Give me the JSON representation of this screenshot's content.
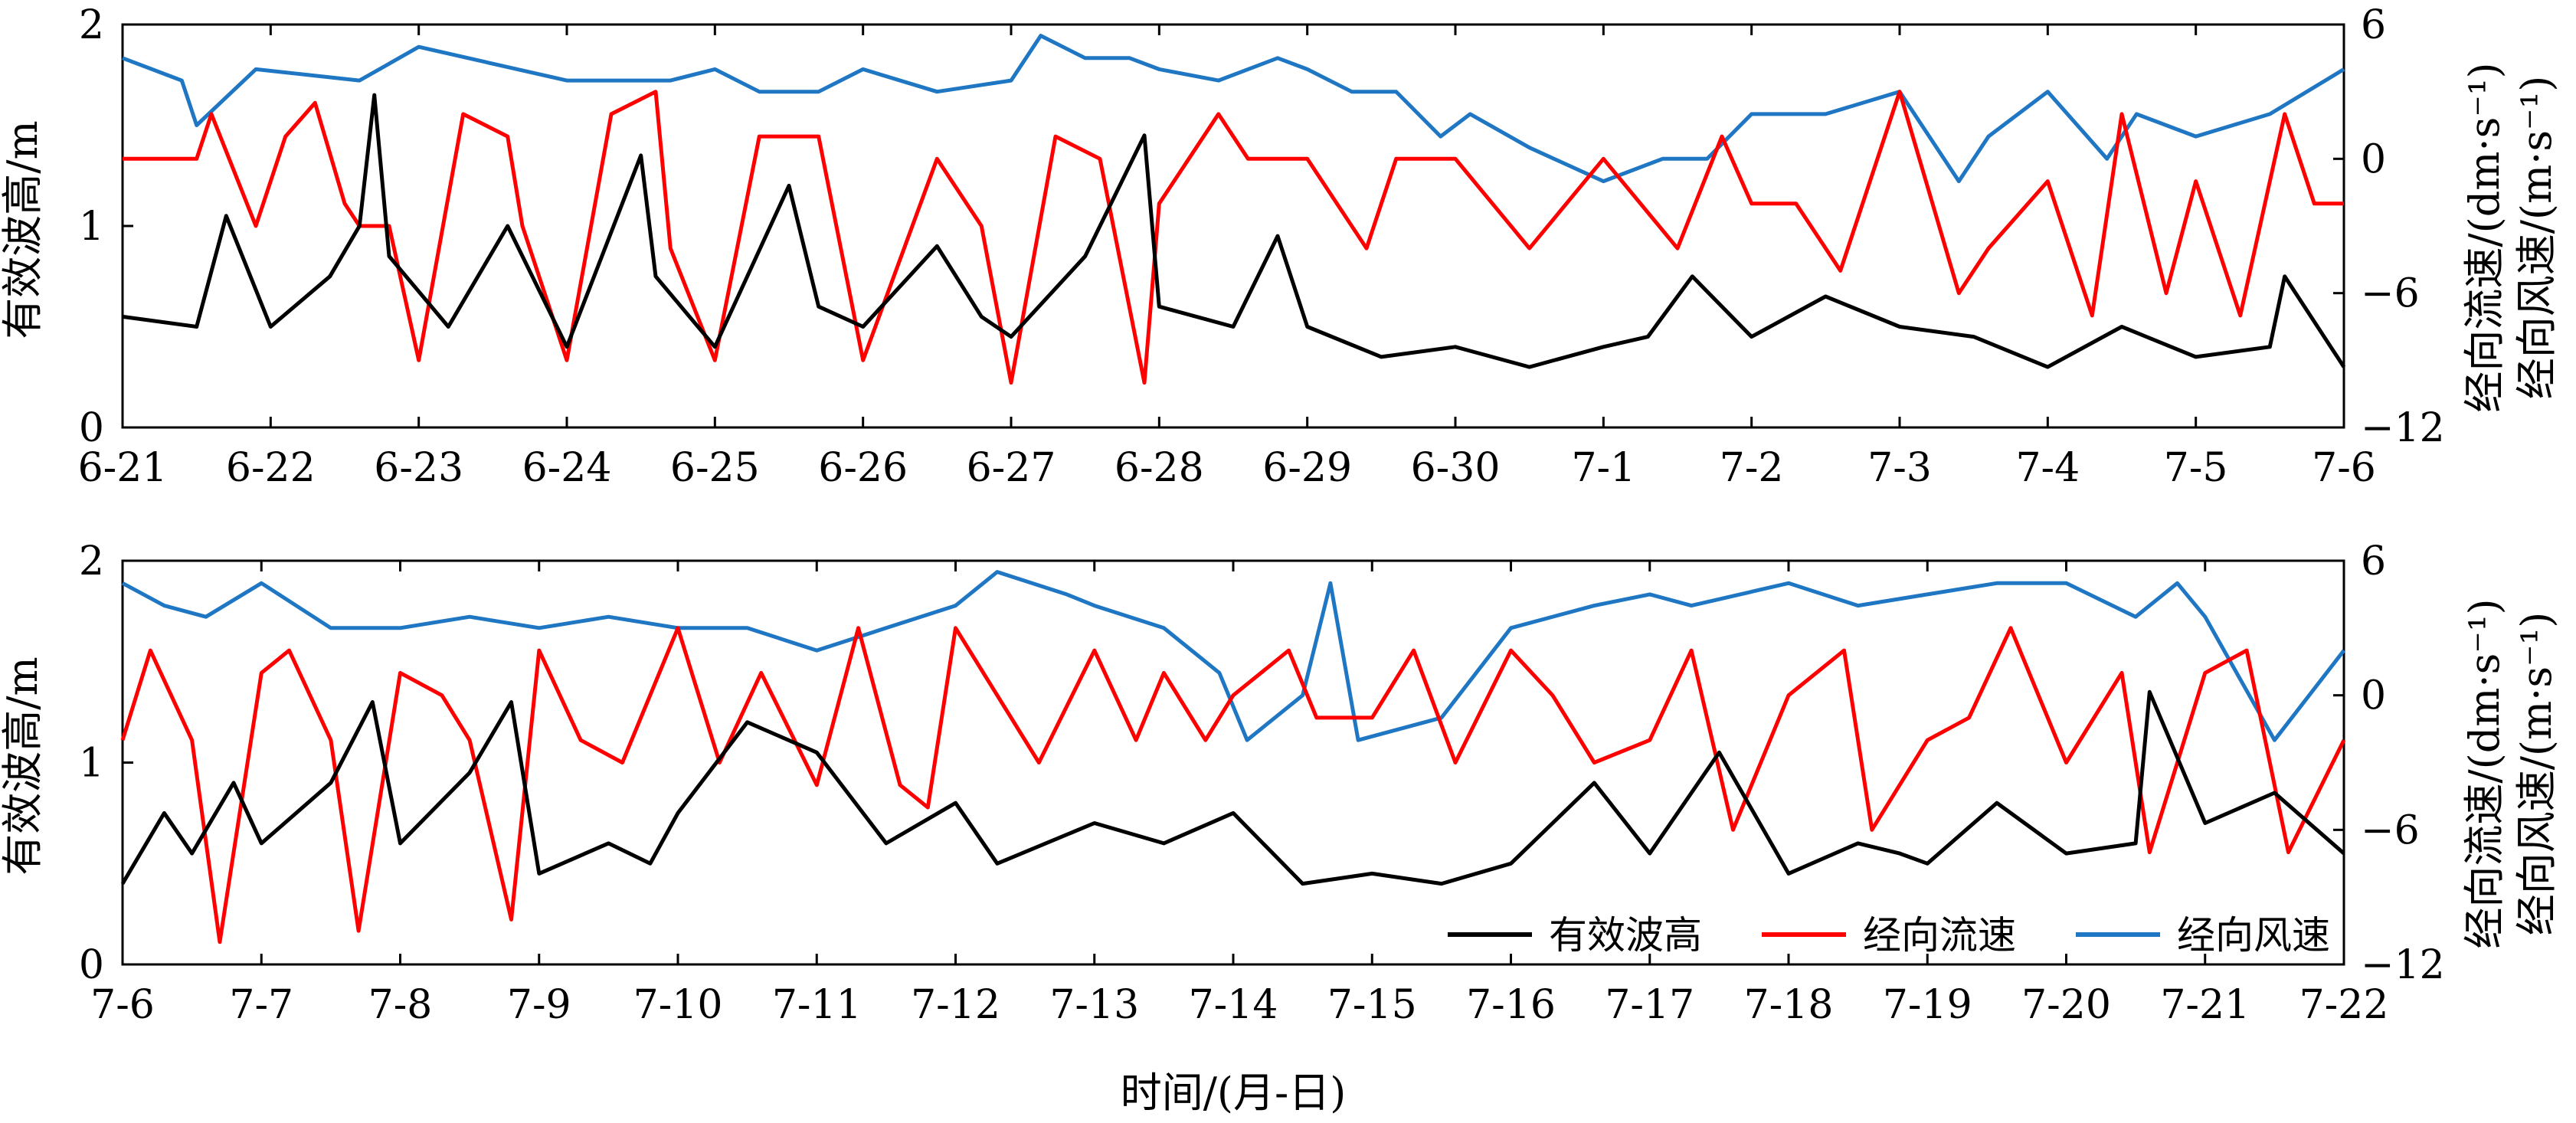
{
  "xlabel_common": "时间/(月-日)",
  "legend": [
    {
      "name": "有效波高",
      "color": "#000000"
    },
    {
      "name": "经向流速",
      "color": "#ff0000"
    },
    {
      "name": "经向风速",
      "color": "#1f77c4"
    }
  ],
  "chart_data": [
    {
      "type": "line",
      "ylabel_left": "有效波高/m",
      "ylabel_right": [
        "经向流速/(dm·s⁻¹)",
        "经向风速/(m·s⁻¹)"
      ],
      "ylim_left": [
        0,
        2
      ],
      "ylim_right": [
        -12,
        6
      ],
      "yticks_left": [
        "0",
        "1",
        "2"
      ],
      "yticks_right": [
        "−12",
        "−6",
        "0",
        "6"
      ],
      "x_ticks": [
        "6-21",
        "6-22",
        "6-23",
        "6-24",
        "6-25",
        "6-26",
        "6-27",
        "6-28",
        "6-29",
        "6-30",
        "7-1",
        "7-2",
        "7-3",
        "7-4",
        "7-5",
        "7-6"
      ],
      "series": [
        {
          "name": "有效波高",
          "axis": "left",
          "color": "#000000",
          "x": [
            0,
            0.5,
            0.7,
            1.0,
            1.4,
            1.6,
            1.7,
            1.8,
            2.2,
            2.6,
            3.0,
            3.5,
            3.6,
            4.0,
            4.5,
            4.7,
            5.0,
            5.5,
            5.8,
            6.0,
            6.5,
            6.9,
            7.0,
            7.5,
            7.8,
            8.0,
            8.5,
            9.0,
            9.5,
            10.0,
            10.3,
            10.6,
            11.0,
            11.5,
            12.0,
            12.5,
            13.0,
            13.5,
            14.0,
            14.5,
            14.6,
            15.0
          ],
          "values": [
            0.55,
            0.5,
            1.05,
            0.5,
            0.75,
            1.0,
            1.65,
            0.85,
            0.5,
            1.0,
            0.4,
            1.35,
            0.75,
            0.4,
            1.2,
            0.6,
            0.5,
            0.9,
            0.55,
            0.45,
            0.85,
            1.45,
            0.6,
            0.5,
            0.95,
            0.5,
            0.35,
            0.4,
            0.3,
            0.4,
            0.45,
            0.75,
            0.45,
            0.65,
            0.5,
            0.45,
            0.3,
            0.5,
            0.35,
            0.4,
            0.75,
            0.3
          ]
        },
        {
          "name": "经向流速",
          "axis": "right",
          "color": "#ff0000",
          "x": [
            0,
            0.5,
            0.6,
            0.9,
            1.1,
            1.3,
            1.5,
            1.6,
            1.8,
            2.0,
            2.3,
            2.6,
            2.7,
            3.0,
            3.3,
            3.6,
            3.7,
            4.0,
            4.3,
            4.7,
            5.0,
            5.5,
            5.8,
            6.0,
            6.3,
            6.6,
            6.9,
            7.0,
            7.4,
            7.6,
            8.0,
            8.4,
            8.6,
            9.0,
            9.5,
            10.0,
            10.5,
            10.8,
            11.0,
            11.3,
            11.6,
            12.0,
            12.4,
            12.6,
            13.0,
            13.3,
            13.5,
            13.8,
            14.0,
            14.3,
            14.6,
            14.8,
            15.0
          ],
          "values": [
            0,
            0,
            2,
            -3,
            1,
            2.5,
            -2,
            -3,
            -3,
            -9,
            2,
            1,
            -3,
            -9,
            2,
            3,
            -4,
            -9,
            1,
            1,
            -9,
            0,
            -3,
            -10,
            1,
            0,
            -10,
            -2,
            2,
            0,
            0,
            -4,
            0,
            0,
            -4,
            0,
            -4,
            1,
            -2,
            -2,
            -5,
            3,
            -6,
            -4,
            -1,
            -7,
            2,
            -6,
            -1,
            -7,
            2,
            -2,
            -2
          ]
        },
        {
          "name": "经向风速",
          "axis": "right",
          "color": "#1f77c4",
          "x": [
            0,
            0.4,
            0.5,
            0.9,
            1.6,
            2.0,
            3.0,
            3.7,
            4.0,
            4.3,
            4.7,
            5.0,
            5.5,
            6.0,
            6.2,
            6.5,
            6.8,
            7.0,
            7.4,
            7.8,
            8.0,
            8.3,
            8.6,
            8.9,
            9.1,
            9.5,
            10.0,
            10.4,
            10.7,
            11.0,
            11.5,
            12.0,
            12.4,
            12.6,
            13.0,
            13.4,
            13.6,
            14.0,
            14.5,
            15.0
          ],
          "values": [
            4.5,
            3.5,
            1.5,
            4,
            3.5,
            5,
            3.5,
            3.5,
            4,
            3,
            3,
            4,
            3,
            3.5,
            5.5,
            4.5,
            4.5,
            4,
            3.5,
            4.5,
            4,
            3,
            3,
            1,
            2,
            0.5,
            -1,
            0,
            0,
            2,
            2,
            3,
            -1,
            1,
            3,
            0,
            2,
            1,
            2,
            4
          ]
        }
      ]
    },
    {
      "type": "line",
      "ylabel_left": "有效波高/m",
      "ylabel_right": [
        "经向流速/(dm·s⁻¹)",
        "经向风速/(m·s⁻¹)"
      ],
      "ylim_left": [
        0,
        2
      ],
      "ylim_right": [
        -12,
        6
      ],
      "yticks_left": [
        "0",
        "1",
        "2"
      ],
      "yticks_right": [
        "−12",
        "−6",
        "0",
        "6"
      ],
      "x_ticks": [
        "7-6",
        "7-7",
        "7-8",
        "7-9",
        "7-10",
        "7-11",
        "7-12",
        "7-13",
        "7-14",
        "7-15",
        "7-16",
        "7-17",
        "7-18",
        "7-19",
        "7-20",
        "7-21",
        "7-22"
      ],
      "series": [
        {
          "name": "有效波高",
          "axis": "left",
          "color": "#000000",
          "x": [
            0,
            0.3,
            0.5,
            0.8,
            1.0,
            1.5,
            1.8,
            2.0,
            2.5,
            2.8,
            3.0,
            3.5,
            3.8,
            4.0,
            4.5,
            5.0,
            5.5,
            6.0,
            6.3,
            7.0,
            7.5,
            8.0,
            8.5,
            9.0,
            9.5,
            10.0,
            10.6,
            11.0,
            11.5,
            12.0,
            12.5,
            12.8,
            13.0,
            13.5,
            14.0,
            14.5,
            14.6,
            15.0,
            15.5,
            16.0
          ],
          "values": [
            0.4,
            0.75,
            0.55,
            0.9,
            0.6,
            0.9,
            1.3,
            0.6,
            0.95,
            1.3,
            0.45,
            0.6,
            0.5,
            0.75,
            1.2,
            1.05,
            0.6,
            0.8,
            0.5,
            0.7,
            0.6,
            0.75,
            0.4,
            0.45,
            0.4,
            0.5,
            0.9,
            0.55,
            1.05,
            0.45,
            0.6,
            0.55,
            0.5,
            0.8,
            0.55,
            0.6,
            1.35,
            0.7,
            0.85,
            0.55
          ]
        },
        {
          "name": "经向流速",
          "axis": "right",
          "color": "#ff0000",
          "x": [
            0,
            0.2,
            0.5,
            0.7,
            1.0,
            1.2,
            1.5,
            1.7,
            2.0,
            2.3,
            2.5,
            2.8,
            3.0,
            3.3,
            3.6,
            4.0,
            4.3,
            4.6,
            5.0,
            5.3,
            5.6,
            5.8,
            6.0,
            6.3,
            6.6,
            7.0,
            7.3,
            7.5,
            7.8,
            8.0,
            8.4,
            8.6,
            9.0,
            9.3,
            9.6,
            10.0,
            10.3,
            10.6,
            11.0,
            11.3,
            11.6,
            12.0,
            12.4,
            12.6,
            13.0,
            13.3,
            13.6,
            14.0,
            14.4,
            14.6,
            15.0,
            15.3,
            15.6,
            16.0
          ],
          "values": [
            -2,
            2,
            -2,
            -11,
            1,
            2,
            -2,
            -10.5,
            1,
            0,
            -2,
            -10,
            2,
            -2,
            -3,
            3,
            -3,
            1,
            -4,
            3,
            -4,
            -5,
            3,
            0,
            -3,
            2,
            -2,
            1,
            -2,
            0,
            2,
            -1,
            -1,
            2,
            -3,
            2,
            0,
            -3,
            -2,
            2,
            -6,
            0,
            2,
            -6,
            -2,
            -1,
            3,
            -3,
            1,
            -7,
            1,
            2,
            -7,
            -2
          ]
        },
        {
          "name": "经向风速",
          "axis": "right",
          "color": "#1f77c4",
          "x": [
            0,
            0.3,
            0.6,
            1.0,
            1.5,
            2.0,
            2.5,
            3.0,
            3.5,
            4.0,
            4.5,
            5.0,
            5.5,
            6.0,
            6.3,
            6.8,
            7.0,
            7.5,
            7.9,
            8.1,
            8.5,
            8.7,
            8.9,
            9.5,
            10.0,
            10.6,
            11.0,
            11.3,
            12.0,
            12.5,
            13.0,
            13.5,
            14.0,
            14.5,
            14.8,
            15.0,
            15.5,
            16.0
          ],
          "values": [
            5,
            4,
            3.5,
            5,
            3,
            3,
            3.5,
            3,
            3.5,
            3,
            3,
            2,
            3,
            4,
            5.5,
            4.5,
            4,
            3,
            1,
            -2,
            0,
            5,
            -2,
            -1,
            3,
            4,
            4.5,
            4,
            5,
            4,
            4.5,
            5,
            5,
            3.5,
            5,
            3.5,
            -2,
            2
          ]
        }
      ]
    }
  ]
}
